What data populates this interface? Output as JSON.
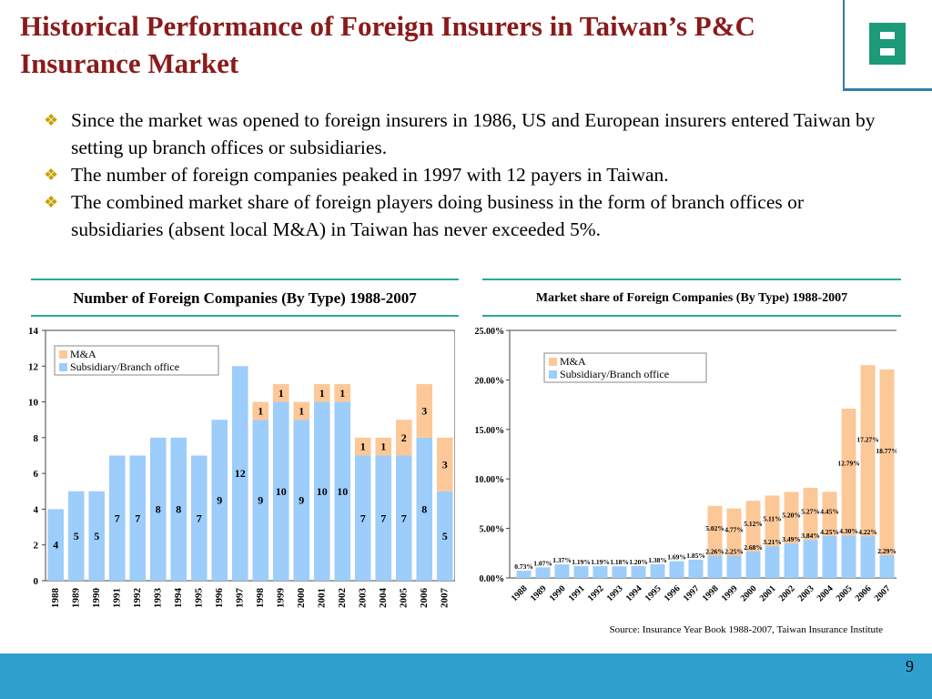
{
  "header": {
    "title_line1": "Historical Performance of Foreign Insurers in Taiwan’s P&C",
    "title_line2": "Insurance Market",
    "logo_icon": "company-logo-icon"
  },
  "bullets": [
    "Since the market was opened to foreign insurers in 1986, US and European insurers entered Taiwan by setting up branch offices or subsidiaries.",
    "The number of foreign companies peaked in 1997 with 12 payers in Taiwan.",
    "The combined market share of foreign players doing business in the form of branch offices or subsidiaries (absent local M&A) in Taiwan has never exceeded 5%."
  ],
  "colors": {
    "ma": "#fdc898",
    "sub": "#9ccdfb",
    "title": "#8b1a1a",
    "accent": "#2f9fce",
    "teal": "#2aa79f"
  },
  "chart_data": [
    {
      "type": "bar",
      "stacked": true,
      "title": "Number of Foreign Companies (By Type) 1988-2007",
      "categories": [
        "1988",
        "1989",
        "1990",
        "1991",
        "1992",
        "1993",
        "1994",
        "1995",
        "1996",
        "1997",
        "1998",
        "1999",
        "2000",
        "2001",
        "2002",
        "2003",
        "2004",
        "2005",
        "2006",
        "2007"
      ],
      "series": [
        {
          "name": "Subsidiary/Branch office",
          "values": [
            4,
            5,
            5,
            7,
            7,
            8,
            8,
            7,
            9,
            12,
            9,
            10,
            9,
            10,
            10,
            7,
            7,
            7,
            8,
            5
          ]
        },
        {
          "name": "M&A",
          "values": [
            0,
            0,
            0,
            0,
            0,
            0,
            0,
            0,
            0,
            0,
            1,
            1,
            1,
            1,
            1,
            1,
            1,
            2,
            3,
            3
          ]
        }
      ],
      "ylim": [
        0,
        14
      ],
      "yticks": [
        "0",
        "2",
        "4",
        "6",
        "8",
        "10",
        "12",
        "14"
      ],
      "legend": "top-left",
      "grid": false
    },
    {
      "type": "bar",
      "stacked": true,
      "title": "Market share of Foreign Companies (By Type) 1988-2007",
      "categories": [
        "1988",
        "1989",
        "1990",
        "1991",
        "1992",
        "1993",
        "1994",
        "1995",
        "1996",
        "1997",
        "1998",
        "1999",
        "2000",
        "2001",
        "2002",
        "2003",
        "2004",
        "2005",
        "2006",
        "2007"
      ],
      "series": [
        {
          "name": "Subsidiary/Branch office",
          "values": [
            0.73,
            1.07,
            1.37,
            1.19,
            1.19,
            1.18,
            1.2,
            1.38,
            1.69,
            1.85,
            2.26,
            2.25,
            2.68,
            3.21,
            3.49,
            3.84,
            4.25,
            4.3,
            4.22,
            2.29
          ]
        },
        {
          "name": "M&A",
          "values": [
            0,
            0,
            0,
            0,
            0,
            0,
            0,
            0,
            0,
            0,
            5.02,
            4.77,
            5.12,
            5.11,
            5.2,
            5.27,
            4.45,
            12.79,
            17.27,
            18.77
          ]
        }
      ],
      "value_labels": {
        "sub": [
          "0.73%",
          "1.07%",
          "1.37%",
          "1.19%",
          "1.19%",
          "1.18%",
          "1.20%",
          "1.38%",
          "1.69%",
          "1.85%",
          "2.26%",
          "2.25%",
          "2.68%",
          "3.21%",
          "3.49%",
          "3.84%",
          "4.25%",
          "4.30%",
          "4.22%",
          "2.29%"
        ],
        "ma": [
          "",
          "",
          "",
          "",
          "",
          "",
          "",
          "",
          "",
          "",
          "5.02%",
          "4.77%",
          "5.12%",
          "5.11%",
          "5.20%",
          "5.27%",
          "4.45%",
          "12.79%",
          "17.27%",
          "18.77%"
        ]
      },
      "ylim": [
        0,
        25
      ],
      "yticks": [
        "0.00%",
        "5.00%",
        "10.00%",
        "15.00%",
        "20.00%",
        "25.00%"
      ],
      "legend": "top-left",
      "grid": false
    }
  ],
  "source": "Source: Insurance Year Book 1988-2007, Taiwan Insurance Institute",
  "page_number": "9"
}
